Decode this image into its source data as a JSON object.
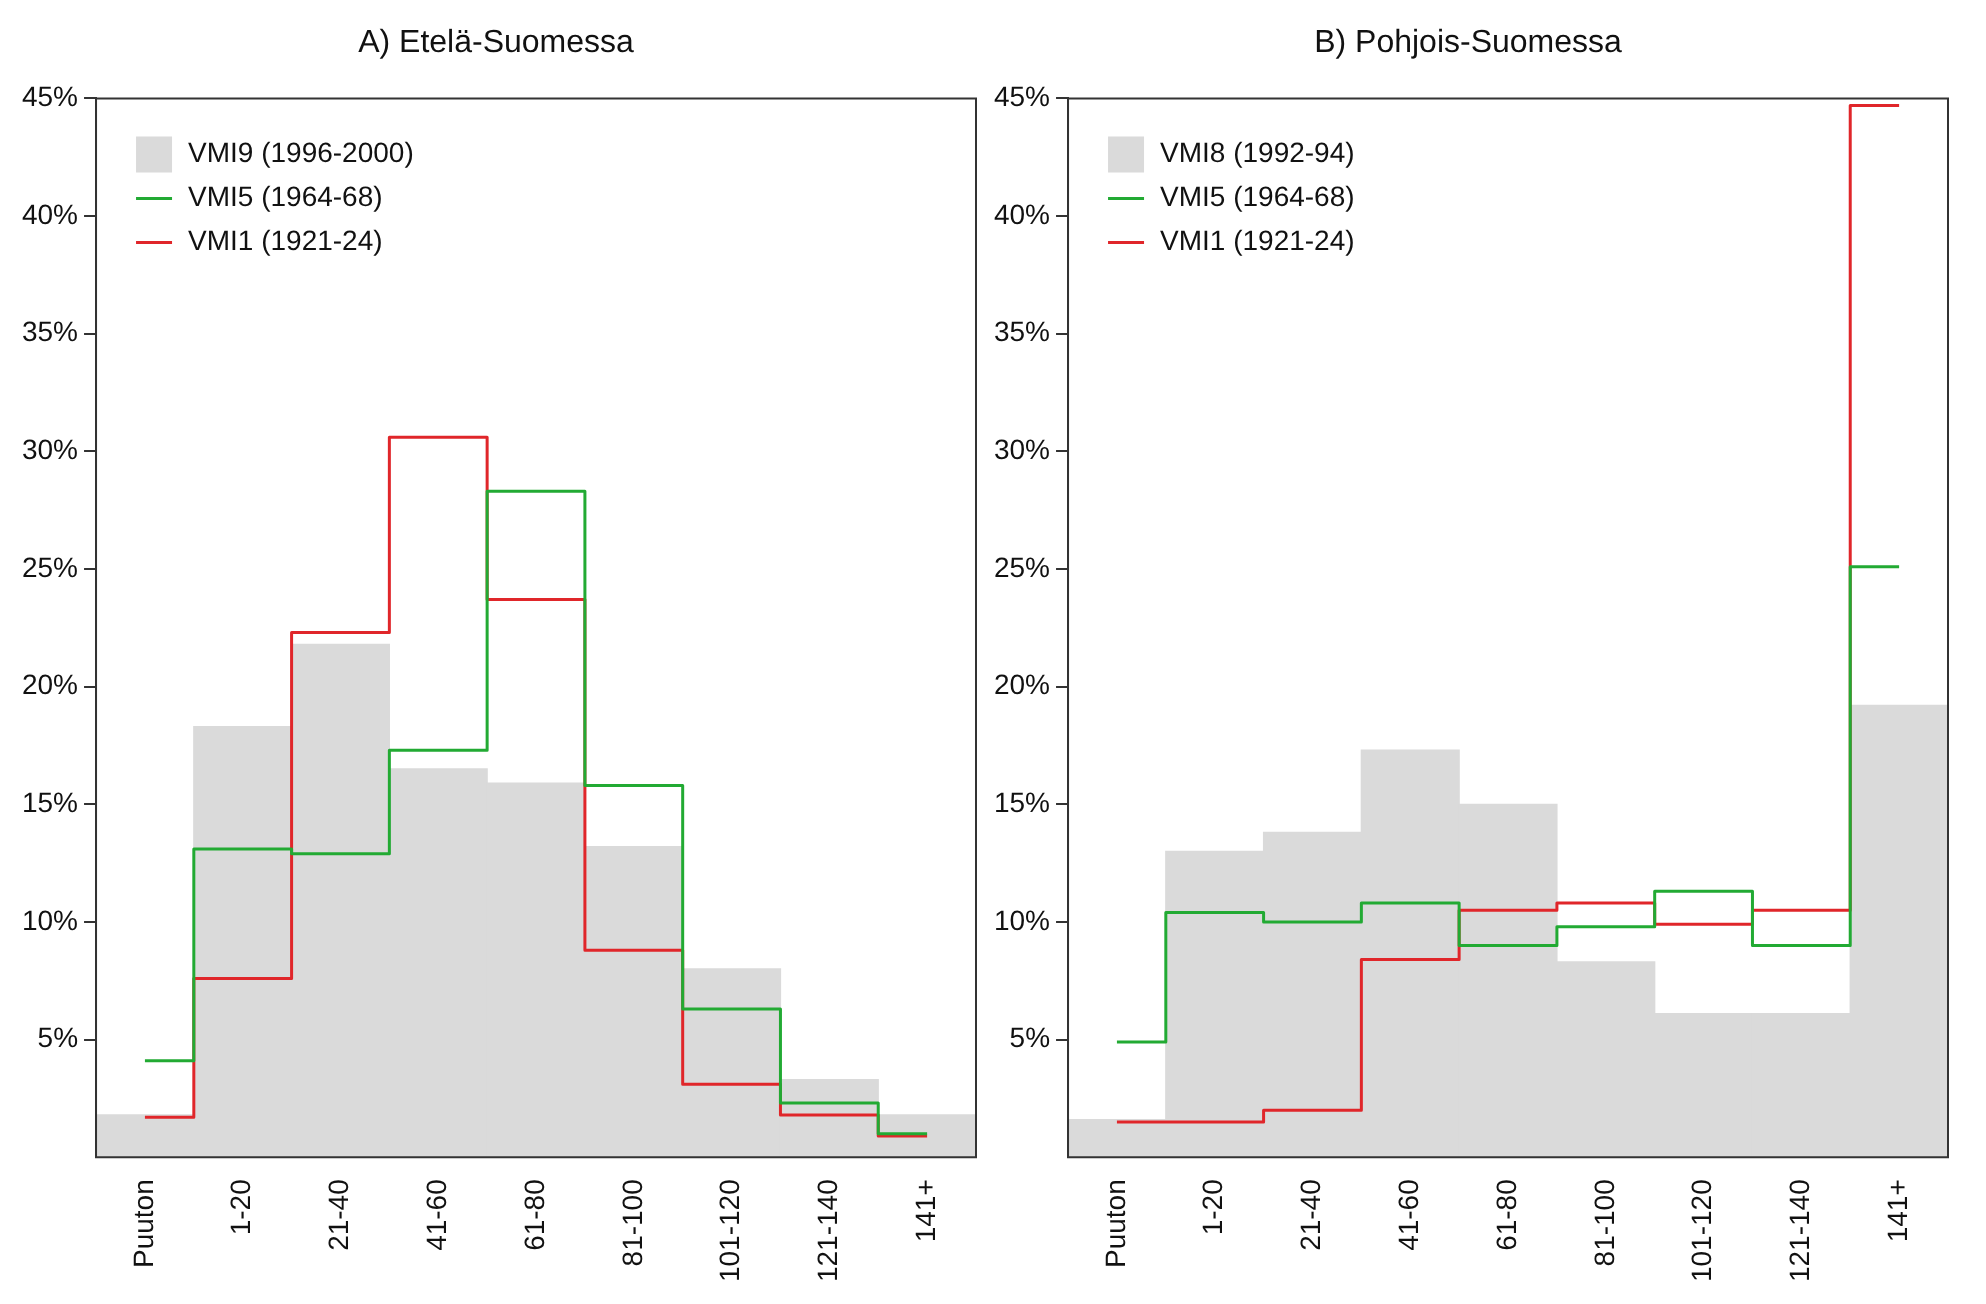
{
  "chart_data": [
    {
      "type": "bar",
      "title": "A) Etelä-Suomessa",
      "categories": [
        "Puuton",
        "1-20",
        "21-40",
        "41-60",
        "61-80",
        "81-100",
        "101-120",
        "121-140",
        "141+"
      ],
      "ylim": [
        0,
        45
      ],
      "yticks": [
        {
          "value": 5,
          "label": "5%"
        },
        {
          "value": 10,
          "label": "10%"
        },
        {
          "value": 15,
          "label": "15%"
        },
        {
          "value": 20,
          "label": "20%"
        },
        {
          "value": 25,
          "label": "25%"
        },
        {
          "value": 30,
          "label": "30%"
        },
        {
          "value": 35,
          "label": "35%"
        },
        {
          "value": 40,
          "label": "40%"
        },
        {
          "value": 45,
          "label": "45%"
        }
      ],
      "legend": "top left",
      "series": [
        {
          "name": "VMI9 (1996-2000)",
          "color": "#dadada",
          "values": [
            1.8,
            18.3,
            21.8,
            16.5,
            15.9,
            13.2,
            8.0,
            3.3,
            1.8
          ]
        },
        {
          "name": "VMI5 (1964-68)",
          "type": "step",
          "color": "#22aa33",
          "values": [
            4.1,
            13.1,
            12.9,
            17.3,
            28.3,
            15.8,
            6.3,
            2.3,
            1.0
          ]
        },
        {
          "name": "VMI1 (1921-24)",
          "type": "step",
          "color": "#e0262a",
          "values": [
            1.7,
            7.6,
            22.3,
            30.6,
            23.7,
            8.8,
            3.1,
            1.8,
            0.9
          ]
        }
      ]
    },
    {
      "type": "bar",
      "title": "B) Pohjois-Suomessa",
      "categories": [
        "Puuton",
        "1-20",
        "21-40",
        "41-60",
        "61-80",
        "81-100",
        "101-120",
        "121-140",
        "141+"
      ],
      "ylim": [
        0,
        45
      ],
      "yticks": [
        {
          "value": 5,
          "label": "5%"
        },
        {
          "value": 10,
          "label": "10%"
        },
        {
          "value": 15,
          "label": "15%"
        },
        {
          "value": 20,
          "label": "20%"
        },
        {
          "value": 25,
          "label": "25%"
        },
        {
          "value": 30,
          "label": "30%"
        },
        {
          "value": 35,
          "label": "35%"
        },
        {
          "value": 40,
          "label": "40%"
        },
        {
          "value": 45,
          "label": "45%"
        }
      ],
      "legend": "top left",
      "series": [
        {
          "name": "VMI8 (1992-94)",
          "color": "#dadada",
          "values": [
            1.6,
            13.0,
            13.8,
            17.3,
            15.0,
            8.3,
            6.1,
            6.1,
            19.2
          ]
        },
        {
          "name": "VMI5 (1964-68)",
          "type": "step",
          "color": "#22aa33",
          "values": [
            4.9,
            10.4,
            10.0,
            10.8,
            9.0,
            9.8,
            11.3,
            9.0,
            25.1
          ]
        },
        {
          "name": "VMI1 (1921-24)",
          "type": "step",
          "color": "#e0262a",
          "values": [
            1.5,
            1.5,
            2.0,
            8.4,
            10.5,
            10.8,
            9.9,
            10.5,
            44.7
          ]
        }
      ]
    }
  ]
}
